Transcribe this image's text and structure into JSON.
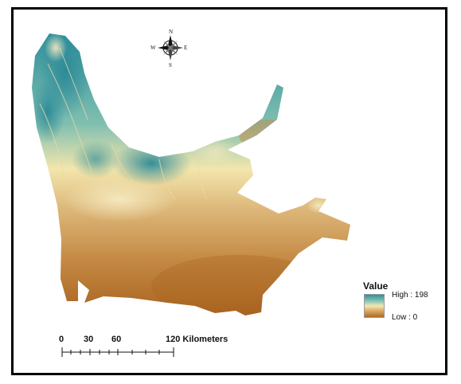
{
  "north_arrow": {
    "icon": "compass-rose-icon",
    "n": "N",
    "s": "S",
    "e": "E",
    "w": "W"
  },
  "legend": {
    "title": "Value",
    "high_label": "High : 198",
    "low_label": "Low : 0",
    "high_value": 198,
    "low_value": 0,
    "colors": {
      "high": "#2f8f9c",
      "mid": "#f5e7b0",
      "low": "#b06a20"
    }
  },
  "scale_bar": {
    "labels": [
      "0",
      "30",
      "60",
      "120 Kilometers"
    ]
  }
}
